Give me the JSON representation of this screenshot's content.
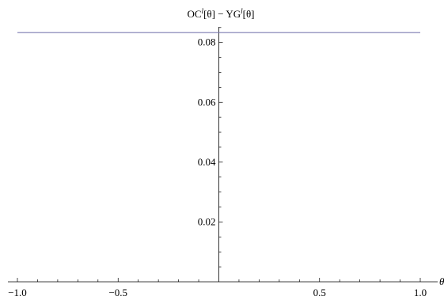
{
  "chart_data": {
    "type": "line",
    "title": "",
    "xlabel": "θ",
    "ylabel": {
      "prefix": "OC",
      "prefix_sup": "l",
      "prefix_arg": "[θ]",
      "minus": " − ",
      "suffix": "YG",
      "suffix_sup": "l",
      "suffix_arg": "[θ]"
    },
    "xlim": [
      -1.0,
      1.0
    ],
    "ylim": [
      0.0,
      0.086
    ],
    "x_ticks": [
      -1.0,
      -0.5,
      0.5,
      1.0
    ],
    "x_tick_labels": [
      "−1.0",
      "−0.5",
      "0.5",
      "1.0"
    ],
    "y_ticks": [
      0.02,
      0.04,
      0.06,
      0.08
    ],
    "y_tick_labels": [
      "0.02",
      "0.04",
      "0.06",
      "0.08"
    ],
    "grid": false,
    "series": [
      {
        "color": "#7b7ab0",
        "x": [
          -1.0,
          -0.5,
          0.0,
          0.5,
          1.0
        ],
        "y": [
          0.0833,
          0.0833,
          0.0833,
          0.0833,
          0.0833
        ]
      }
    ]
  }
}
